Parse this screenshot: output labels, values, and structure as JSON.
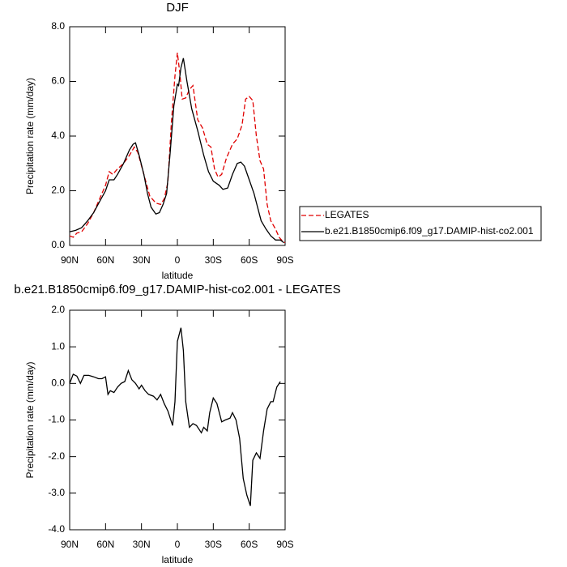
{
  "chart_data": [
    {
      "type": "line",
      "title": "DJF",
      "xlabel": "latitude",
      "ylabel": "Precipitation rate (mm/day)",
      "xlim": [
        90,
        -90
      ],
      "ylim": [
        0,
        8
      ],
      "xticks": [
        {
          "value": 90,
          "label": "90N"
        },
        {
          "value": 60,
          "label": "60N"
        },
        {
          "value": 30,
          "label": "30N"
        },
        0,
        {
          "value": -30,
          "label": "30S"
        },
        {
          "value": -60,
          "label": "60S"
        },
        {
          "value": -90,
          "label": "90S"
        }
      ],
      "yticks": [
        {
          "value": 0,
          "label": "0.0"
        },
        {
          "value": 2,
          "label": "2.0"
        },
        {
          "value": 4,
          "label": "4.0"
        },
        {
          "value": 6,
          "label": "6.0"
        },
        {
          "value": 8,
          "label": "8.0"
        }
      ],
      "legend": "outside right",
      "series": [
        {
          "name": "LEGATES",
          "color": "#e00000",
          "dashed": true,
          "x": [
            90,
            87,
            84,
            80,
            75,
            70,
            65,
            60,
            57,
            54,
            50,
            45,
            40,
            36,
            33,
            28,
            23,
            18,
            14,
            11,
            8,
            5,
            2,
            0,
            -2,
            -4,
            -7,
            -10,
            -13,
            -17,
            -21,
            -25,
            -28,
            -31,
            -34,
            -37,
            -41,
            -46,
            -50,
            -54,
            -57,
            -60,
            -63,
            -66,
            -69,
            -72,
            -75,
            -78,
            -82,
            -85,
            -88,
            -90
          ],
          "values": [
            0.35,
            0.3,
            0.45,
            0.5,
            0.8,
            1.2,
            1.7,
            2.2,
            2.7,
            2.6,
            2.8,
            3.0,
            3.3,
            3.6,
            3.4,
            2.6,
            1.8,
            1.55,
            1.5,
            1.7,
            2.3,
            4.5,
            6.2,
            7.05,
            6.3,
            5.35,
            5.4,
            5.7,
            5.85,
            4.6,
            4.3,
            3.7,
            3.6,
            2.8,
            2.5,
            2.6,
            3.2,
            3.7,
            3.9,
            4.4,
            5.35,
            5.45,
            5.3,
            4.0,
            3.1,
            2.8,
            1.5,
            0.9,
            0.6,
            0.3,
            0.15,
            0.1
          ]
        },
        {
          "name": "b.e21.B1850cmip6.f09_g17.DAMIP-hist-co2.001",
          "color": "#000000",
          "dashed": false,
          "x": [
            90,
            85,
            80,
            75,
            70,
            65,
            60,
            57,
            53,
            50,
            45,
            40,
            37,
            35,
            32,
            28,
            25,
            22,
            18,
            15,
            12,
            9,
            6,
            3,
            0,
            -1,
            -3,
            -5,
            -8,
            -12,
            -17,
            -22,
            -26,
            -30,
            -35,
            -38,
            -42,
            -46,
            -50,
            -53,
            -56,
            -60,
            -64,
            -67,
            -70,
            -74,
            -78,
            -82,
            -86,
            -89
          ],
          "values": [
            0.5,
            0.55,
            0.65,
            0.9,
            1.2,
            1.6,
            2.0,
            2.4,
            2.4,
            2.6,
            3.0,
            3.5,
            3.7,
            3.75,
            3.3,
            2.6,
            1.9,
            1.4,
            1.15,
            1.2,
            1.5,
            1.9,
            3.4,
            5.1,
            5.9,
            5.85,
            6.5,
            6.85,
            6.0,
            5.0,
            4.2,
            3.3,
            2.7,
            2.35,
            2.2,
            2.05,
            2.1,
            2.6,
            3.0,
            3.05,
            2.9,
            2.4,
            1.9,
            1.4,
            0.9,
            0.6,
            0.35,
            0.2,
            0.2,
            0.1
          ]
        }
      ]
    },
    {
      "type": "line",
      "title": "b.e21.B1850cmip6.f09_g17.DAMIP-hist-co2.001 - LEGATES",
      "xlabel": "latitude",
      "ylabel": "Precipitation rate (mm/day)",
      "xlim": [
        90,
        -90
      ],
      "ylim": [
        -4,
        2
      ],
      "xticks": [
        {
          "value": 90,
          "label": "90N"
        },
        {
          "value": 60,
          "label": "60N"
        },
        {
          "value": 30,
          "label": "30N"
        },
        0,
        {
          "value": -30,
          "label": "30S"
        },
        {
          "value": -60,
          "label": "60S"
        },
        {
          "value": -90,
          "label": "90S"
        }
      ],
      "yticks": [
        {
          "value": -4,
          "label": "-4.0"
        },
        {
          "value": -3,
          "label": "-3.0"
        },
        {
          "value": -2,
          "label": "-2.0"
        },
        {
          "value": -1,
          "label": "-1.0"
        },
        {
          "value": 0,
          "label": "0.0"
        },
        {
          "value": 1,
          "label": "1.0"
        },
        {
          "value": 2,
          "label": "2.0"
        }
      ],
      "series": [
        {
          "color": "#000000",
          "dashed": false,
          "x": [
            90,
            87,
            84,
            81,
            78,
            74,
            70,
            66,
            63,
            60,
            58,
            56,
            53,
            50,
            47,
            44,
            41,
            38,
            35,
            32,
            30,
            27,
            24,
            20,
            17,
            14,
            11,
            8,
            4,
            2,
            0,
            -3,
            -5,
            -7,
            -10,
            -13,
            -16,
            -20,
            -22,
            -25,
            -27,
            -30,
            -33,
            -37,
            -40,
            -44,
            -46,
            -49,
            -52,
            -55,
            -58,
            -61,
            -63,
            -66,
            -69,
            -72,
            -75,
            -78,
            -80,
            -83,
            -86
          ],
          "values": [
            0.0,
            0.25,
            0.2,
            0.0,
            0.22,
            0.22,
            0.18,
            0.13,
            0.13,
            0.18,
            -0.3,
            -0.2,
            -0.25,
            -0.1,
            0.0,
            0.05,
            0.35,
            0.1,
            0.0,
            -0.15,
            -0.05,
            -0.2,
            -0.3,
            -0.35,
            -0.45,
            -0.3,
            -0.55,
            -0.75,
            -1.15,
            -0.5,
            1.15,
            1.52,
            0.9,
            -0.5,
            -1.2,
            -1.1,
            -1.15,
            -1.35,
            -1.2,
            -1.3,
            -0.8,
            -0.4,
            -0.55,
            -1.05,
            -1.0,
            -0.95,
            -0.8,
            -1.0,
            -1.5,
            -2.6,
            -3.05,
            -3.35,
            -2.1,
            -1.9,
            -2.05,
            -1.3,
            -0.7,
            -0.5,
            -0.5,
            -0.1,
            0.05
          ]
        }
      ]
    }
  ]
}
